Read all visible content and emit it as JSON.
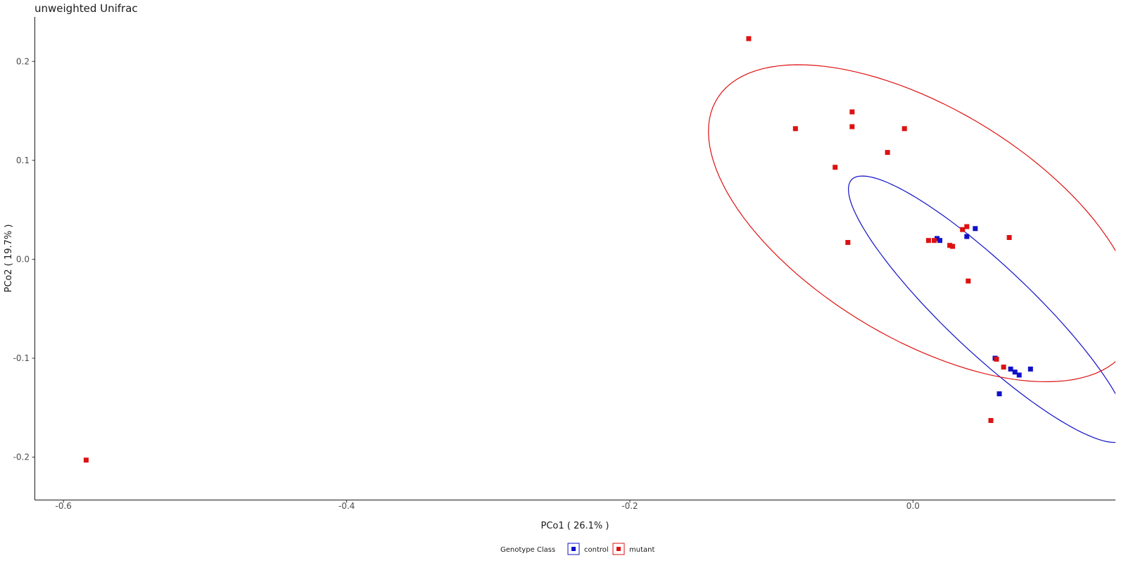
{
  "chart_data": {
    "type": "scatter",
    "title": "unweighted Unifrac",
    "xlabel": "PCo1 ( 26.1% )",
    "ylabel": "PCo2 ( 19.7% )",
    "xlim": [
      -0.62,
      0.143
    ],
    "ylim": [
      -0.243,
      0.245
    ],
    "xticks": [
      -0.6,
      -0.4,
      -0.2,
      0.0
    ],
    "xtick_labels": [
      "-0.6",
      "-0.4",
      "-0.2",
      "0.0"
    ],
    "yticks": [
      -0.2,
      -0.1,
      0.0,
      0.1,
      0.2
    ],
    "ytick_labels": [
      "-0.2",
      "-0.1",
      "0.0",
      "0.1",
      "0.2"
    ],
    "grid": false,
    "legend": {
      "title": "Genotype Class",
      "position": "bottom-center",
      "entries": [
        "control",
        "mutant"
      ]
    },
    "colors": {
      "control": "#1010c8",
      "mutant": "#dd1111"
    },
    "series": [
      {
        "name": "control",
        "points": [
          [
            0.017,
            0.021
          ],
          [
            0.019,
            0.019
          ],
          [
            0.044,
            0.031
          ],
          [
            0.038,
            0.023
          ],
          [
            0.058,
            -0.1
          ],
          [
            0.069,
            -0.111
          ],
          [
            0.072,
            -0.114
          ],
          [
            0.075,
            -0.117
          ],
          [
            0.083,
            -0.111
          ],
          [
            0.061,
            -0.136
          ]
        ],
        "ellipse": {
          "cx": 0.0533,
          "cy": -0.0505,
          "rx": 0.1633,
          "ry": 0.0355,
          "angle_deg": -54.6
        }
      },
      {
        "name": "mutant",
        "points": [
          [
            -0.116,
            0.223
          ],
          [
            -0.083,
            0.132
          ],
          [
            -0.043,
            0.149
          ],
          [
            -0.043,
            0.134
          ],
          [
            -0.006,
            0.132
          ],
          [
            -0.018,
            0.108
          ],
          [
            -0.055,
            0.093
          ],
          [
            -0.046,
            0.017
          ],
          [
            0.011,
            0.019
          ],
          [
            0.015,
            0.019
          ],
          [
            0.026,
            0.014
          ],
          [
            0.028,
            0.013
          ],
          [
            0.035,
            0.03
          ],
          [
            0.038,
            0.033
          ],
          [
            0.068,
            0.022
          ],
          [
            0.039,
            -0.022
          ],
          [
            0.059,
            -0.101
          ],
          [
            0.064,
            -0.109
          ],
          [
            0.055,
            -0.163
          ],
          [
            -0.584,
            -0.203
          ]
        ],
        "ellipse": {
          "cx": 0.0066,
          "cy": 0.0364,
          "rx": 0.1958,
          "ry": 0.1008,
          "angle_deg": -47.9
        }
      }
    ]
  }
}
